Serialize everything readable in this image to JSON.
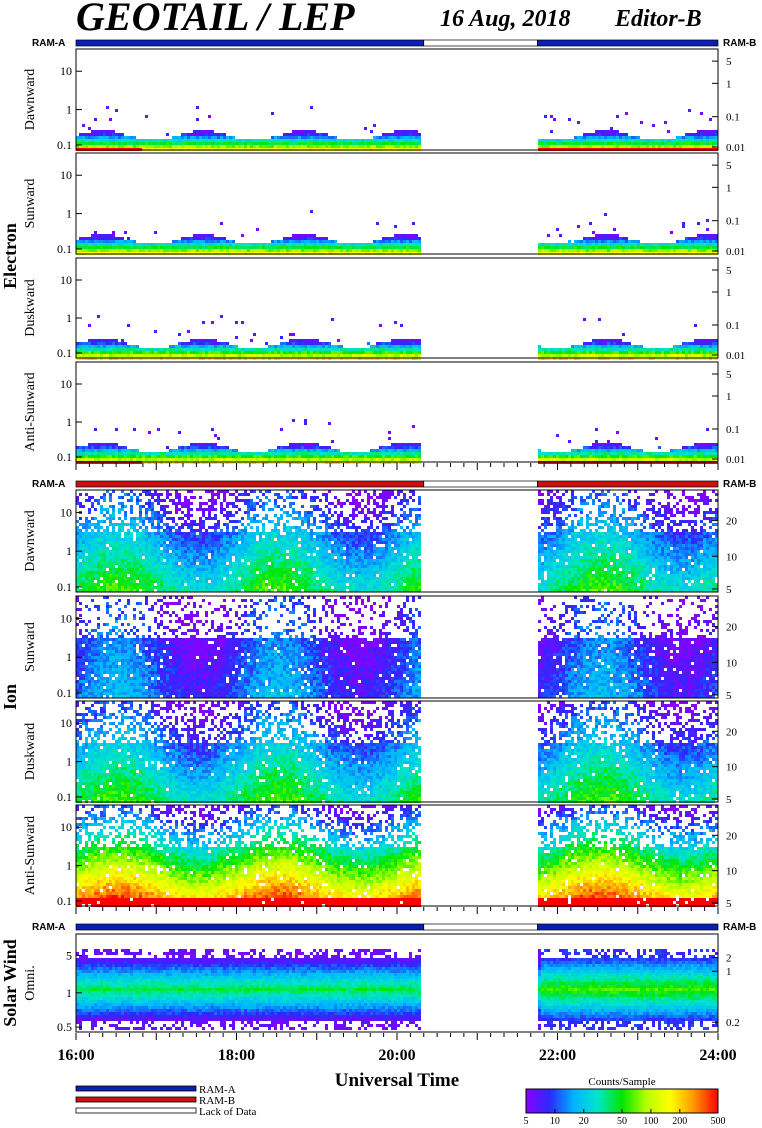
{
  "header": {
    "title": "GEOTAIL / LEP",
    "date": "16 Aug, 2018",
    "editor": "Editor-B"
  },
  "colors": {
    "ram_a": "#0a1fb4",
    "ram_b": "#cc1111",
    "lack_of_data": "#ffffff",
    "colorbar_stops": [
      "#8a00ff",
      "#2a2aff",
      "#00b4ff",
      "#00e6c8",
      "#00e600",
      "#b4ff00",
      "#ffff00",
      "#ff9600",
      "#ff0000"
    ]
  },
  "chart_data": {
    "type": "heatmap",
    "xlabel": "Universal Time",
    "xlim": [
      "16:00",
      "24:00"
    ],
    "x_ticks": [
      "16:00",
      "18:00",
      "20:00",
      "22:00",
      "24:00"
    ],
    "data_gap": [
      "20:20",
      "21:45"
    ],
    "groups": [
      {
        "name": "Electron",
        "ram_label_left": "RAM-A",
        "ram_label_right": "RAM-B",
        "ram_bar": [
          {
            "from": "16:00",
            "to": "20:20",
            "state": "RAM-A"
          },
          {
            "from": "20:20",
            "to": "21:45",
            "state": "Lack of Data"
          },
          {
            "from": "21:45",
            "to": "24:00",
            "state": "RAM-A"
          }
        ],
        "left_ticks": [
          "10",
          "1",
          "0.1"
        ],
        "right_ticks": [
          "5",
          "1",
          "0.1",
          "0.01"
        ],
        "panels": [
          {
            "label": "Dawnward"
          },
          {
            "label": "Sunward"
          },
          {
            "label": "Duskward"
          },
          {
            "label": "Anti-Sunward"
          }
        ]
      },
      {
        "name": "Ion",
        "ram_label_left": "RAM-A",
        "ram_label_right": "RAM-B",
        "ram_bar": [
          {
            "from": "16:00",
            "to": "20:20",
            "state": "RAM-B"
          },
          {
            "from": "20:20",
            "to": "21:45",
            "state": "Lack of Data"
          },
          {
            "from": "21:45",
            "to": "24:00",
            "state": "RAM-B"
          }
        ],
        "left_ticks": [
          "10",
          "1",
          "0.1"
        ],
        "right_ticks": [
          "20",
          "10",
          "5"
        ],
        "panels": [
          {
            "label": "Dawnward"
          },
          {
            "label": "Sunward"
          },
          {
            "label": "Duskward"
          },
          {
            "label": "Anti-Sunward"
          }
        ]
      },
      {
        "name": "Solar Wind",
        "ram_label_left": "RAM-A",
        "ram_label_right": "RAM-B",
        "ram_bar": [
          {
            "from": "16:00",
            "to": "20:20",
            "state": "RAM-A"
          },
          {
            "from": "20:20",
            "to": "21:45",
            "state": "Lack of Data"
          },
          {
            "from": "21:45",
            "to": "24:00",
            "state": "RAM-A"
          }
        ],
        "left_ticks": [
          "5",
          "1",
          "0.5"
        ],
        "right_ticks": [
          "2",
          "1",
          "0.2"
        ],
        "panels": [
          {
            "label": "Omni."
          }
        ]
      }
    ],
    "legend": {
      "items": [
        "RAM-A",
        "RAM-B",
        "Lack of Data"
      ],
      "placement": "bottom-left"
    },
    "colorbar": {
      "title": "Counts/Sample",
      "ticks": [
        "5",
        "10",
        "20",
        "50",
        "100",
        "200",
        "500"
      ],
      "placement": "bottom-right"
    }
  }
}
